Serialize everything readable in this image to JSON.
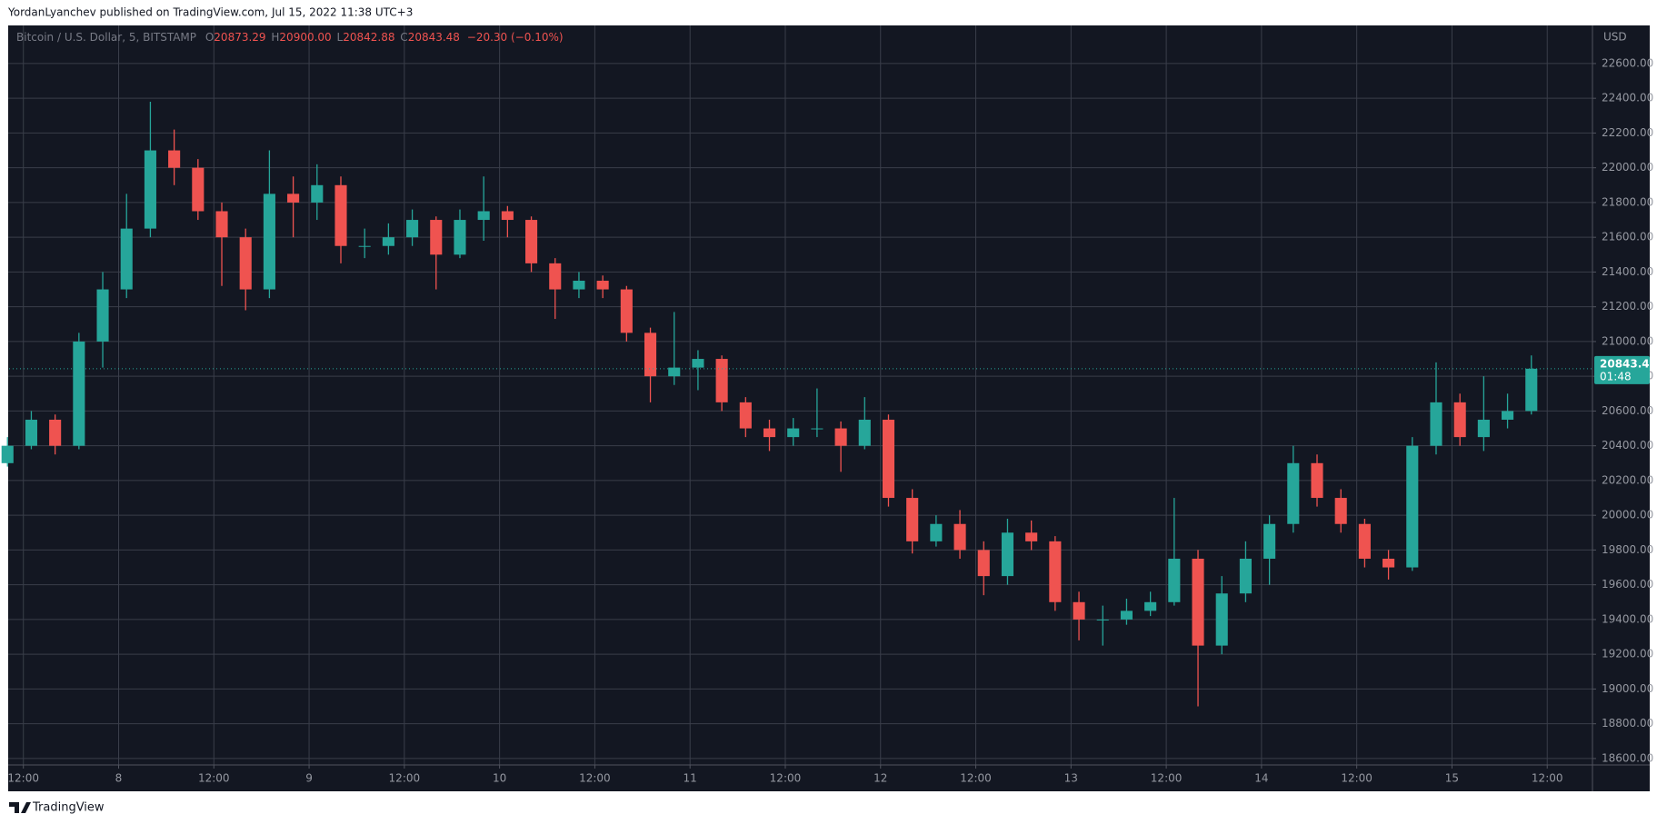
{
  "header": {
    "text": "YordanLyanchev published on TradingView.com, Jul 15, 2022 11:38 UTC+3"
  },
  "footer": {
    "brand": "TradingView"
  },
  "chart_data": {
    "type": "candlestick",
    "title": "Bitcoin / U.S. Dollar, 5, BITSTAMP",
    "ohlc_legend": {
      "open_label": "O",
      "open": "20873.29",
      "high_label": "H",
      "high": "20900.00",
      "low_label": "L",
      "low": "20842.88",
      "close_label": "C",
      "close": "20843.48",
      "change": "−20.30 (−0.10%)"
    },
    "y_axis_unit": "USD",
    "countdown": "01:48",
    "up_color": "#26a69a",
    "down_color": "#ef5350",
    "grid": true,
    "x": [
      10,
      13,
      16,
      19,
      22,
      25,
      28,
      31,
      34,
      37,
      40,
      43,
      46,
      49,
      52,
      55,
      58,
      61,
      64,
      67,
      70,
      73,
      76,
      79,
      82,
      85,
      88,
      91,
      94,
      97,
      100,
      103,
      106,
      109,
      112,
      115,
      118,
      121,
      124,
      127,
      130,
      133,
      136,
      139,
      142,
      145,
      148,
      151,
      154,
      157,
      160,
      163,
      166,
      169,
      172,
      175,
      178,
      181,
      184,
      187,
      190,
      193,
      196,
      199,
      202
    ],
    "open": [
      20300,
      20400,
      20550,
      20400,
      21000,
      21300,
      21650,
      22100,
      22000,
      21750,
      21600,
      21300,
      21850,
      21800,
      21900,
      21550,
      21550,
      21600,
      21700,
      21500,
      21700,
      21750,
      21700,
      21450,
      21300,
      21350,
      21300,
      21050,
      20800,
      20850,
      20900,
      20650,
      20500,
      20450,
      20500,
      20500,
      20400,
      20550,
      20100,
      19850,
      19950,
      19800,
      19650,
      19900,
      19850,
      19500,
      19400,
      19400,
      19450,
      19500,
      19750,
      19250,
      19550,
      19750,
      19950,
      20300,
      20100,
      19950,
      19750,
      19700,
      20400,
      20650,
      20450,
      20550,
      20600
    ],
    "high": [
      20450,
      20600,
      20580,
      21050,
      21400,
      21850,
      22380,
      22220,
      22050,
      21800,
      21650,
      22100,
      21950,
      22020,
      21950,
      21650,
      21680,
      21760,
      21720,
      21760,
      21950,
      21780,
      21720,
      21480,
      21400,
      21380,
      21320,
      21080,
      21170,
      20950,
      20920,
      20680,
      20550,
      20560,
      20730,
      20540,
      20680,
      20580,
      20150,
      20000,
      20030,
      19850,
      19980,
      19970,
      19880,
      19560,
      19480,
      19520,
      19560,
      20100,
      19800,
      19650,
      19850,
      20000,
      20400,
      20350,
      20150,
      19980,
      19800,
      20450,
      20880,
      20700,
      20800,
      20700,
      20920
    ],
    "low": [
      20280,
      20380,
      20350,
      20380,
      20850,
      21250,
      21600,
      21900,
      21700,
      21320,
      21180,
      21250,
      21600,
      21700,
      21450,
      21480,
      21500,
      21550,
      21300,
      21480,
      21580,
      21600,
      21400,
      21130,
      21250,
      21250,
      21000,
      20650,
      20750,
      20720,
      20600,
      20450,
      20370,
      20400,
      20450,
      20250,
      20380,
      20050,
      19780,
      19820,
      19750,
      19540,
      19600,
      19800,
      19450,
      19280,
      19250,
      19370,
      19420,
      19480,
      18900,
      19200,
      19500,
      19600,
      19900,
      20050,
      19900,
      19700,
      19630,
      19680,
      20350,
      20400,
      20370,
      20500,
      20580
    ],
    "close": [
      20400,
      20550,
      20400,
      21000,
      21300,
      21650,
      22100,
      22000,
      21750,
      21600,
      21300,
      21850,
      21800,
      21900,
      21550,
      21550,
      21600,
      21700,
      21500,
      21700,
      21750,
      21700,
      21450,
      21300,
      21350,
      21300,
      21050,
      20800,
      20850,
      20900,
      20650,
      20500,
      20450,
      20500,
      20500,
      20400,
      20550,
      20100,
      19850,
      19950,
      19800,
      19650,
      19900,
      19850,
      19500,
      19400,
      19400,
      19450,
      19500,
      19750,
      19250,
      19550,
      19750,
      19950,
      20300,
      20100,
      19950,
      19750,
      19700,
      20400,
      20650,
      20450,
      20550,
      20600,
      20843.48
    ],
    "xlim": [
      10.2,
      209.7
    ],
    "xticks": [
      {
        "value": 12,
        "label": "12:00"
      },
      {
        "value": 24,
        "label": "8"
      },
      {
        "value": 36,
        "label": "12:00"
      },
      {
        "value": 48,
        "label": "9"
      },
      {
        "value": 60,
        "label": "12:00"
      },
      {
        "value": 72,
        "label": "10"
      },
      {
        "value": 84,
        "label": "12:00"
      },
      {
        "value": 96,
        "label": "11"
      },
      {
        "value": 108,
        "label": "12:00"
      },
      {
        "value": 120,
        "label": "12"
      },
      {
        "value": 132,
        "label": "12:00"
      },
      {
        "value": 144,
        "label": "13"
      },
      {
        "value": 156,
        "label": "12:00"
      },
      {
        "value": 168,
        "label": "14"
      },
      {
        "value": 180,
        "label": "12:00"
      },
      {
        "value": 192,
        "label": "15"
      },
      {
        "value": 204,
        "label": "12:00"
      }
    ],
    "ylim": [
      18563,
      22814
    ],
    "yticks": [
      {
        "value": 18600,
        "label": "18600.00"
      },
      {
        "value": 18800,
        "label": "18800.00"
      },
      {
        "value": 19000,
        "label": "19000.00"
      },
      {
        "value": 19200,
        "label": "19200.00"
      },
      {
        "value": 19400,
        "label": "19400.00"
      },
      {
        "value": 19600,
        "label": "19600.00"
      },
      {
        "value": 19800,
        "label": "19800.00"
      },
      {
        "value": 20000,
        "label": "20000.00"
      },
      {
        "value": 20200,
        "label": "20200.00"
      },
      {
        "value": 20400,
        "label": "20400.00"
      },
      {
        "value": 20600,
        "label": "20600.00"
      },
      {
        "value": 20800,
        "label": "20800.00"
      },
      {
        "value": 21000,
        "label": "21000.00"
      },
      {
        "value": 21200,
        "label": "21200.00"
      },
      {
        "value": 21400,
        "label": "21400.00"
      },
      {
        "value": 21600,
        "label": "21600.00"
      },
      {
        "value": 21800,
        "label": "21800.00"
      },
      {
        "value": 22000,
        "label": "22000.00"
      },
      {
        "value": 22200,
        "label": "22200.00"
      },
      {
        "value": 22400,
        "label": "22400.00"
      },
      {
        "value": 22600,
        "label": "22600.00"
      }
    ]
  }
}
